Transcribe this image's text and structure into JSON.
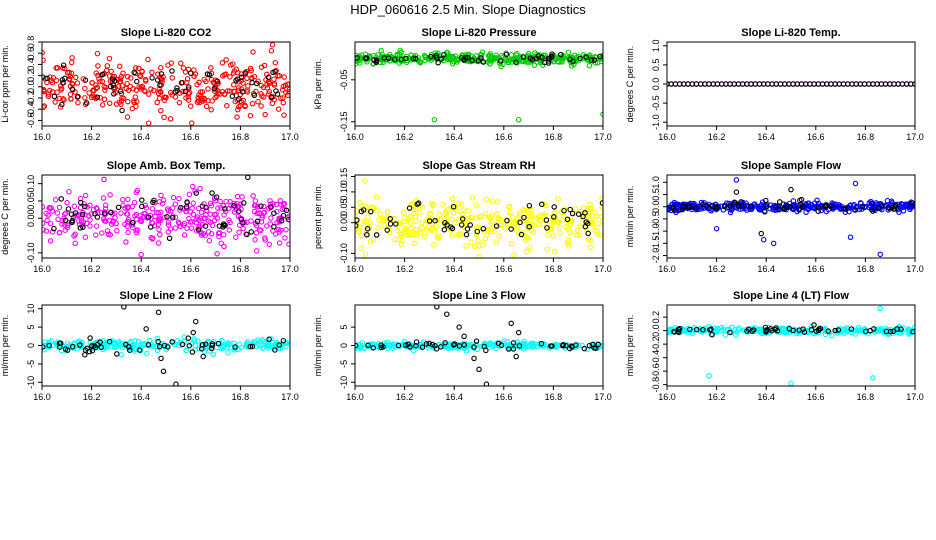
{
  "page_title": "HDP_060616  2.5 Min. Slope Diagnostics",
  "colors": {
    "red": "#ff0000",
    "green": "#00cc00",
    "magenta": "#ff00ff",
    "yellow": "#ffff00",
    "blue": "#0000ff",
    "cyan": "#00ffff",
    "black": "#000000"
  },
  "chart_data": [
    {
      "type": "scatter",
      "title": "Slope Li-820 CO2",
      "ylabel": "Li-cor ppm per min.",
      "xlim": [
        16.0,
        17.0
      ],
      "ylim": [
        -0.7,
        0.8
      ],
      "xticks": [
        "16.0",
        "16.2",
        "16.4",
        "16.6",
        "16.8",
        "17.0"
      ],
      "yticks": [
        "-0.6",
        "-0.4",
        "-0.2",
        "0.0",
        "0.2",
        "0.4",
        "0.6",
        "0.8"
      ],
      "series": [
        {
          "color": "red",
          "center": 0.0,
          "spread": 0.28,
          "n": 340,
          "outliers": [
            [
              16.93,
              0.75
            ],
            [
              16.43,
              -0.65
            ]
          ]
        },
        {
          "color": "black",
          "center": 0.0,
          "spread": 0.22,
          "n": 55,
          "outliers": []
        }
      ]
    },
    {
      "type": "scatter",
      "title": "Slope Li-820 Pressure",
      "ylabel": "kPa per min.",
      "xlim": [
        16.0,
        17.0
      ],
      "ylim": [
        -0.16,
        0.04
      ],
      "xticks": [
        "16.0",
        "16.2",
        "16.4",
        "16.6",
        "16.8",
        "17.0"
      ],
      "yticks": [
        "-0.15",
        "-0.05"
      ],
      "series": [
        {
          "color": "green",
          "center": 0.0,
          "spread": 0.008,
          "n": 340,
          "outliers": [
            [
              16.32,
              -0.145
            ],
            [
              16.66,
              -0.145
            ],
            [
              17.0,
              -0.132
            ]
          ]
        },
        {
          "color": "black",
          "center": 0.0,
          "spread": 0.006,
          "n": 55,
          "outliers": []
        }
      ]
    },
    {
      "type": "scatter",
      "title": "Slope Li-820 Temp.",
      "ylabel": "degrees C per min.",
      "xlim": [
        16.0,
        17.0
      ],
      "ylim": [
        -1.1,
        1.1
      ],
      "xticks": [
        "16.0",
        "16.2",
        "16.4",
        "16.6",
        "16.8",
        "17.0"
      ],
      "yticks": [
        "-1.0",
        "-0.5",
        "0.0",
        "0.5",
        "1.0"
      ],
      "series": [
        {
          "color": "magenta",
          "center": 0.0,
          "spread": 0.0,
          "n": 60,
          "outliers": []
        },
        {
          "color": "black",
          "center": 0.0,
          "spread": 0.0,
          "n": 60,
          "outliers": []
        }
      ]
    },
    {
      "type": "scatter",
      "title": "Slope Amb. Box Temp.",
      "ylabel": "degrees C per min.",
      "xlim": [
        16.0,
        17.0
      ],
      "ylim": [
        -0.115,
        0.125
      ],
      "xticks": [
        "16.0",
        "16.2",
        "16.4",
        "16.6",
        "16.8",
        "17.0"
      ],
      "yticks": [
        "-0.10",
        "0.00",
        "0.05",
        "0.10"
      ],
      "series": [
        {
          "color": "magenta",
          "center": 0.0,
          "spread": 0.045,
          "n": 340,
          "outliers": [
            [
              16.25,
              0.112
            ],
            [
              16.4,
              -0.105
            ]
          ]
        },
        {
          "color": "black",
          "center": 0.0,
          "spread": 0.04,
          "n": 60,
          "outliers": [
            [
              16.83,
              0.118
            ]
          ]
        }
      ]
    },
    {
      "type": "scatter",
      "title": "Slope Gas Stream RH",
      "ylabel": "percent per min.",
      "xlim": [
        16.0,
        17.0
      ],
      "ylim": [
        -0.115,
        0.155
      ],
      "xticks": [
        "16.0",
        "16.2",
        "16.4",
        "16.6",
        "16.8",
        "17.0"
      ],
      "yticks": [
        "-0.10",
        "0.00",
        "0.05",
        "0.10",
        "0.15"
      ],
      "series": [
        {
          "color": "yellow",
          "center": 0.0,
          "spread": 0.045,
          "n": 340,
          "outliers": [
            [
              16.04,
              0.135
            ],
            [
              16.5,
              -0.11
            ]
          ]
        },
        {
          "color": "black",
          "center": 0.0,
          "spread": 0.04,
          "n": 55,
          "outliers": []
        }
      ]
    },
    {
      "type": "scatter",
      "title": "Slope Sample Flow",
      "ylabel": "ml/min per min.",
      "xlim": [
        16.0,
        17.0
      ],
      "ylim": [
        -2.1,
        1.3
      ],
      "xticks": [
        "16.0",
        "16.2",
        "16.4",
        "16.6",
        "16.8",
        "17.0"
      ],
      "yticks": [
        "-2.0",
        "-1.5",
        "-1.0",
        "-0.5",
        "0.0",
        "0.5",
        "1.0"
      ],
      "series": [
        {
          "color": "blue",
          "center": 0.0,
          "spread": 0.12,
          "n": 340,
          "outliers": [
            [
              16.28,
              1.1
            ],
            [
              16.39,
              -1.35
            ],
            [
              16.43,
              -1.5
            ],
            [
              16.76,
              0.95
            ],
            [
              16.74,
              -1.25
            ],
            [
              16.86,
              -1.95
            ],
            [
              16.2,
              -0.9
            ]
          ]
        },
        {
          "color": "black",
          "center": 0.0,
          "spread": 0.15,
          "n": 60,
          "outliers": [
            [
              16.38,
              -1.1
            ],
            [
              16.5,
              0.7
            ],
            [
              16.28,
              0.6
            ]
          ]
        }
      ]
    },
    {
      "type": "scatter",
      "title": "Slope Line 2 Flow",
      "ylabel": "ml/min per min.",
      "xlim": [
        16.0,
        17.0
      ],
      "ylim": [
        -11,
        11
      ],
      "xticks": [
        "16.0",
        "16.2",
        "16.4",
        "16.6",
        "16.8",
        "17.0"
      ],
      "yticks": [
        "-10",
        "-5",
        "0",
        "5",
        "10"
      ],
      "series": [
        {
          "color": "cyan",
          "center": 0.0,
          "spread": 0.9,
          "n": 240,
          "outliers": [
            [
              16.32,
              -2.5
            ],
            [
              16.75,
              -2.0
            ]
          ]
        },
        {
          "color": "black",
          "center": 0.0,
          "spread": 1.2,
          "n": 50,
          "outliers": [
            [
              16.33,
              10.5
            ],
            [
              16.47,
              9.0
            ],
            [
              16.42,
              4.5
            ],
            [
              16.48,
              -3.5
            ],
            [
              16.49,
              -7.0
            ],
            [
              16.54,
              -10.5
            ],
            [
              16.62,
              6.5
            ],
            [
              16.61,
              3.5
            ],
            [
              16.65,
              -3.0
            ],
            [
              16.59,
              2.0
            ]
          ]
        }
      ]
    },
    {
      "type": "scatter",
      "title": "Slope Line 3 Flow",
      "ylabel": "ml/min per min.",
      "xlim": [
        16.0,
        17.0
      ],
      "ylim": [
        -11,
        11
      ],
      "xticks": [
        "16.0",
        "16.2",
        "16.4",
        "16.6",
        "16.8",
        "17.0"
      ],
      "yticks": [
        "-10",
        "-5",
        "0",
        "5"
      ],
      "series": [
        {
          "color": "cyan",
          "center": 0.0,
          "spread": 0.5,
          "n": 240,
          "outliers": [
            [
              16.45,
              -1.5
            ],
            [
              16.6,
              1.2
            ]
          ]
        },
        {
          "color": "black",
          "center": 0.0,
          "spread": 0.8,
          "n": 50,
          "outliers": [
            [
              16.33,
              10.5
            ],
            [
              16.37,
              8.5
            ],
            [
              16.42,
              5.0
            ],
            [
              16.48,
              -3.5
            ],
            [
              16.5,
              -6.5
            ],
            [
              16.53,
              -10.5
            ],
            [
              16.63,
              6.0
            ],
            [
              16.66,
              3.5
            ],
            [
              16.65,
              -3.0
            ],
            [
              16.44,
              2.5
            ]
          ]
        }
      ]
    },
    {
      "type": "scatter",
      "title": "Slope Line 4 (LT) Flow",
      "ylabel": "ml/min per min.",
      "xlim": [
        16.0,
        17.0
      ],
      "ylim": [
        -0.82,
        0.38
      ],
      "xticks": [
        "16.0",
        "16.2",
        "16.4",
        "16.6",
        "16.8",
        "17.0"
      ],
      "yticks": [
        "-0.8",
        "-0.6",
        "-0.4",
        "-0.2",
        "0.0",
        "0.2"
      ],
      "series": [
        {
          "color": "cyan",
          "center": 0.0,
          "spread": 0.03,
          "n": 240,
          "outliers": [
            [
              16.86,
              0.33
            ],
            [
              16.17,
              -0.67
            ],
            [
              16.5,
              -0.78
            ],
            [
              16.83,
              -0.7
            ]
          ]
        },
        {
          "color": "black",
          "center": 0.0,
          "spread": 0.03,
          "n": 50,
          "outliers": []
        }
      ]
    }
  ]
}
